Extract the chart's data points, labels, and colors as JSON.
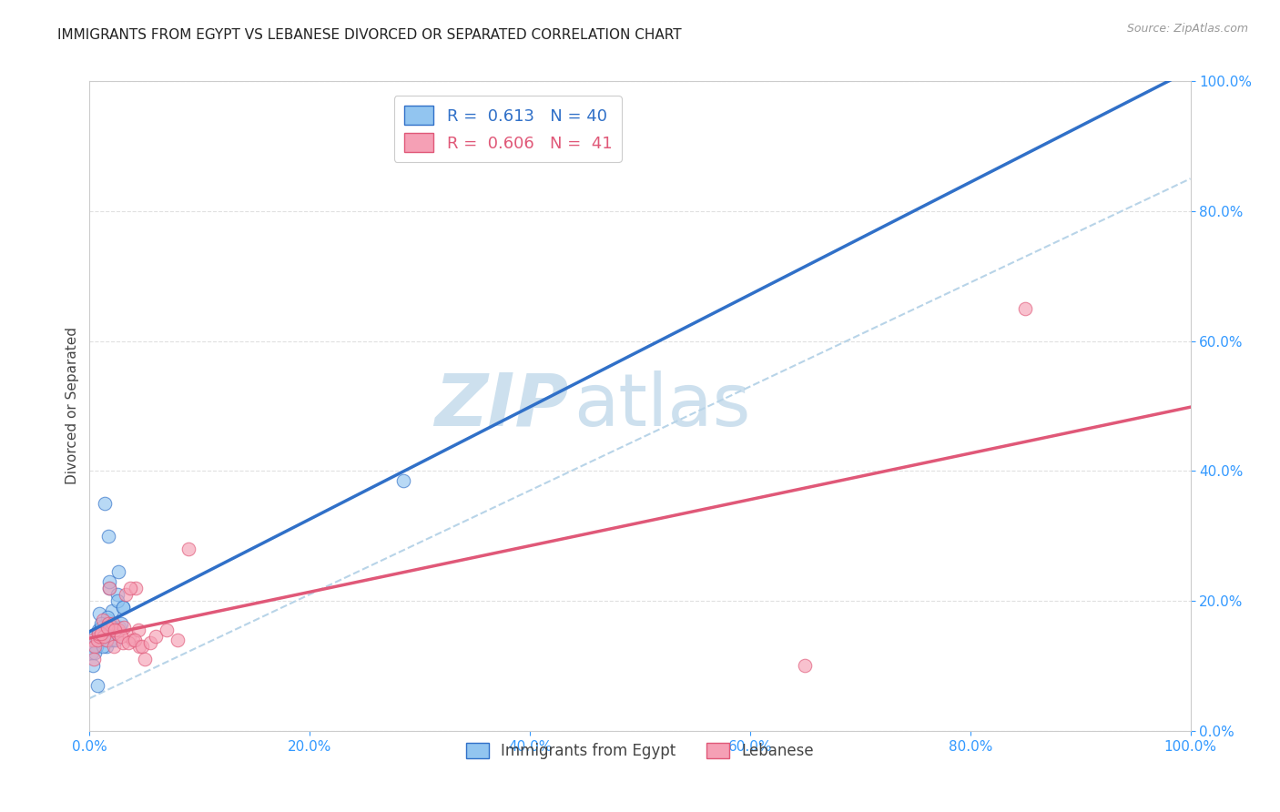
{
  "title": "IMMIGRANTS FROM EGYPT VS LEBANESE DIVORCED OR SEPARATED CORRELATION CHART",
  "source": "Source: ZipAtlas.com",
  "ylabel": "Divorced or Separated",
  "x_ticklabels": [
    "0.0%",
    "20.0%",
    "40.0%",
    "60.0%",
    "80.0%",
    "100.0%"
  ],
  "y_ticklabels": [
    "0.0%",
    "20.0%",
    "40.0%",
    "60.0%",
    "80.0%",
    "100.0%"
  ],
  "x_ticks": [
    0.0,
    0.2,
    0.4,
    0.6,
    0.8,
    1.0
  ],
  "y_ticks": [
    0.0,
    0.2,
    0.4,
    0.6,
    0.8,
    1.0
  ],
  "xlim": [
    0.0,
    1.0
  ],
  "ylim": [
    0.0,
    1.0
  ],
  "series1_color": "#92c5f0",
  "series2_color": "#f5a0b5",
  "series1_line_color": "#3070c8",
  "series2_line_color": "#e05878",
  "dashed_line_color": "#b8d4e8",
  "watermark_zip": "ZIP",
  "watermark_atlas": "atlas",
  "watermark_color": "#cde0ee",
  "legend_label1": "Immigrants from Egypt",
  "legend_label2": "Lebanese",
  "legend1_text": "R =  0.613   N = 40",
  "legend2_text": "R =  0.606   N =  41",
  "tick_color": "#3399ff",
  "grid_color": "#e0e0e0",
  "background_color": "#ffffff",
  "title_fontsize": 11,
  "source_fontsize": 9,
  "series1_x": [
    0.005,
    0.008,
    0.01,
    0.012,
    0.015,
    0.016,
    0.018,
    0.02,
    0.022,
    0.025,
    0.003,
    0.006,
    0.009,
    0.013,
    0.017,
    0.021,
    0.026,
    0.007,
    0.011,
    0.019,
    0.027,
    0.023,
    0.014,
    0.029,
    0.002,
    0.004,
    0.008,
    0.016,
    0.024,
    0.03,
    0.005,
    0.01,
    0.015,
    0.02,
    0.025,
    0.03,
    0.018,
    0.012,
    0.022,
    0.285
  ],
  "series1_y": [
    0.145,
    0.155,
    0.16,
    0.14,
    0.13,
    0.17,
    0.22,
    0.185,
    0.16,
    0.21,
    0.1,
    0.13,
    0.18,
    0.15,
    0.3,
    0.14,
    0.245,
    0.07,
    0.16,
    0.14,
    0.16,
    0.15,
    0.35,
    0.165,
    0.12,
    0.13,
    0.15,
    0.175,
    0.14,
    0.19,
    0.12,
    0.165,
    0.14,
    0.16,
    0.2,
    0.19,
    0.23,
    0.13,
    0.155,
    0.385
  ],
  "series2_x": [
    0.003,
    0.005,
    0.007,
    0.009,
    0.012,
    0.015,
    0.018,
    0.02,
    0.022,
    0.025,
    0.028,
    0.03,
    0.033,
    0.036,
    0.039,
    0.042,
    0.045,
    0.004,
    0.008,
    0.013,
    0.017,
    0.021,
    0.026,
    0.031,
    0.037,
    0.044,
    0.01,
    0.016,
    0.023,
    0.029,
    0.035,
    0.041,
    0.048,
    0.055,
    0.06,
    0.07,
    0.08,
    0.09,
    0.05,
    0.85,
    0.65
  ],
  "series2_y": [
    0.14,
    0.13,
    0.14,
    0.145,
    0.17,
    0.14,
    0.22,
    0.155,
    0.13,
    0.15,
    0.15,
    0.135,
    0.21,
    0.145,
    0.14,
    0.22,
    0.13,
    0.11,
    0.15,
    0.145,
    0.165,
    0.165,
    0.155,
    0.16,
    0.22,
    0.155,
    0.15,
    0.16,
    0.155,
    0.145,
    0.135,
    0.14,
    0.13,
    0.135,
    0.145,
    0.155,
    0.14,
    0.28,
    0.11,
    0.65,
    0.1
  ]
}
